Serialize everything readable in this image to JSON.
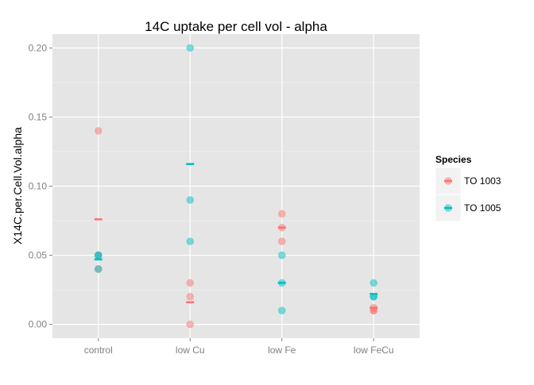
{
  "chart_data": {
    "type": "scatter",
    "title": "14C uptake per cell vol - alpha",
    "xlabel": "",
    "ylabel": "X14C.per.Cell.Vol.alpha",
    "categories": [
      "control",
      "low Cu",
      "low Fe",
      "low FeCu"
    ],
    "ylim": [
      -0.01,
      0.21
    ],
    "yticks": [
      0.0,
      0.05,
      0.1,
      0.15,
      0.2
    ],
    "ytick_labels": [
      "0.00",
      "0.05",
      "0.10",
      "0.15",
      "0.20"
    ],
    "grid": true,
    "legend": {
      "title": "Species",
      "position": "right"
    },
    "series": [
      {
        "name": "TO 1003",
        "color": "#F8766D",
        "points": [
          {
            "x": "control",
            "y": 0.14
          },
          {
            "x": "control",
            "y": 0.05
          },
          {
            "x": "control",
            "y": 0.04
          },
          {
            "x": "low Cu",
            "y": 0.03
          },
          {
            "x": "low Cu",
            "y": 0.02
          },
          {
            "x": "low Cu",
            "y": 0.0
          },
          {
            "x": "low Fe",
            "y": 0.08
          },
          {
            "x": "low Fe",
            "y": 0.07
          },
          {
            "x": "low Fe",
            "y": 0.06
          },
          {
            "x": "low FeCu",
            "y": 0.012
          },
          {
            "x": "low FeCu",
            "y": 0.01
          },
          {
            "x": "low FeCu",
            "y": 0.01
          }
        ],
        "means": [
          {
            "x": "control",
            "y": 0.076
          },
          {
            "x": "low Cu",
            "y": 0.016
          },
          {
            "x": "low Fe",
            "y": 0.07
          },
          {
            "x": "low FeCu",
            "y": 0.012
          }
        ]
      },
      {
        "name": "TO 1005",
        "color": "#00BFC4",
        "points": [
          {
            "x": "control",
            "y": 0.05
          },
          {
            "x": "control",
            "y": 0.05
          },
          {
            "x": "control",
            "y": 0.04
          },
          {
            "x": "low Cu",
            "y": 0.2
          },
          {
            "x": "low Cu",
            "y": 0.09
          },
          {
            "x": "low Cu",
            "y": 0.06
          },
          {
            "x": "low Fe",
            "y": 0.05
          },
          {
            "x": "low Fe",
            "y": 0.03
          },
          {
            "x": "low Fe",
            "y": 0.01
          },
          {
            "x": "low FeCu",
            "y": 0.03
          },
          {
            "x": "low FeCu",
            "y": 0.02
          },
          {
            "x": "low FeCu",
            "y": 0.02
          }
        ],
        "means": [
          {
            "x": "control",
            "y": 0.047
          },
          {
            "x": "low Cu",
            "y": 0.116
          },
          {
            "x": "low Fe",
            "y": 0.03
          },
          {
            "x": "low FeCu",
            "y": 0.022
          }
        ]
      }
    ]
  }
}
